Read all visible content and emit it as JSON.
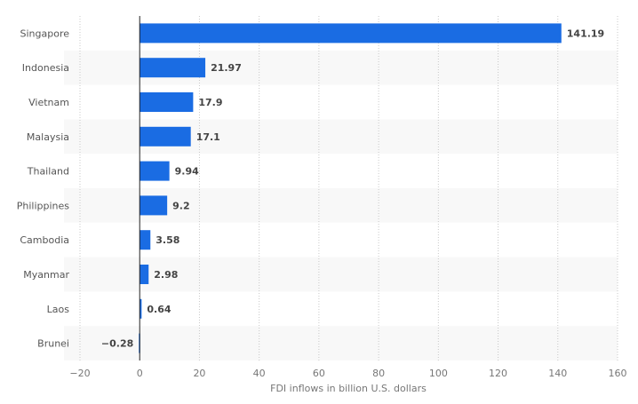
{
  "chart_data": {
    "type": "bar",
    "orientation": "horizontal",
    "categories": [
      "Singapore",
      "Indonesia",
      "Vietnam",
      "Malaysia",
      "Thailand",
      "Philippines",
      "Cambodia",
      "Myanmar",
      "Laos",
      "Brunei"
    ],
    "values": [
      141.19,
      21.97,
      17.9,
      17.1,
      9.94,
      9.2,
      3.58,
      2.98,
      0.64,
      -0.28
    ],
    "value_labels": [
      "141.19",
      "21.97",
      "17.9",
      "17.1",
      "9.94",
      "9.2",
      "3.58",
      "2.98",
      "0.64",
      "−0.28"
    ],
    "xlabel": "FDI inflows in billion U.S. dollars",
    "xlim": [
      -20,
      160
    ],
    "xticks": [
      -20,
      0,
      20,
      40,
      60,
      80,
      100,
      120,
      140,
      160
    ],
    "xtick_labels": [
      "−20",
      "0",
      "20",
      "40",
      "60",
      "80",
      "100",
      "120",
      "140",
      "160"
    ],
    "grid": "vertical dotted",
    "bar_color": "#1a6ce3",
    "stripe_color": "#f8f8f8"
  }
}
